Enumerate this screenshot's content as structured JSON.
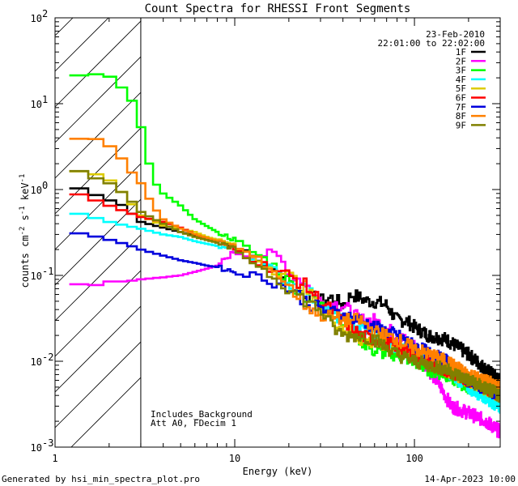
{
  "chart_data": {
    "type": "line",
    "title": "Count Spectra for RHESSI Front Segments",
    "xlabel": "Energy (keV)",
    "ylabel": "counts cm^-2 s^-1 keV^-1",
    "ylabel_parts": {
      "base": "counts cm",
      "e1": "-2",
      "mid1": " s",
      "e2": "-1",
      "mid2": " keV",
      "e3": "-1"
    },
    "x_scale": "log",
    "y_scale": "log",
    "xlim": [
      1,
      300
    ],
    "ylim": [
      0.001,
      100
    ],
    "x_ticks": [
      {
        "value": 1,
        "label": "1"
      },
      {
        "value": 10,
        "label": "10"
      },
      {
        "value": 100,
        "label": "100"
      }
    ],
    "y_ticks": [
      {
        "value": 0.001,
        "base": "10",
        "exp": "-3"
      },
      {
        "value": 0.01,
        "base": "10",
        "exp": "-2"
      },
      {
        "value": 0.1,
        "base": "10",
        "exp": "-1"
      },
      {
        "value": 1,
        "base": "10",
        "exp": "0"
      },
      {
        "value": 10,
        "base": "10",
        "exp": "1"
      },
      {
        "value": 100,
        "base": "10",
        "exp": "2"
      }
    ],
    "date": "23-Feb-2010",
    "time_range": "22:01:00 to 22:02:00",
    "hatched_region": {
      "x_from": 1,
      "x_to": 3
    },
    "annotations": [
      "Includes_Background",
      "Att A0, FDecim 1"
    ],
    "series": [
      {
        "name": "1F",
        "color": "#000000",
        "points": [
          [
            1.2,
            1.15
          ],
          [
            1.4,
            1.0
          ],
          [
            1.8,
            0.82
          ],
          [
            2.4,
            0.65
          ],
          [
            3,
            0.42
          ],
          [
            4,
            0.36
          ],
          [
            5,
            0.32
          ],
          [
            6,
            0.29
          ],
          [
            8,
            0.26
          ],
          [
            10,
            0.22
          ],
          [
            13,
            0.16
          ],
          [
            16,
            0.12
          ],
          [
            20,
            0.085
          ],
          [
            25,
            0.06
          ],
          [
            30,
            0.05
          ],
          [
            35,
            0.055
          ],
          [
            40,
            0.045
          ],
          [
            45,
            0.06
          ],
          [
            55,
            0.05
          ],
          [
            60,
            0.05
          ],
          [
            70,
            0.045
          ],
          [
            80,
            0.03
          ],
          [
            90,
            0.03
          ],
          [
            100,
            0.025
          ],
          [
            120,
            0.02
          ],
          [
            150,
            0.018
          ],
          [
            200,
            0.012
          ],
          [
            250,
            0.008
          ],
          [
            300,
            0.006
          ]
        ]
      },
      {
        "name": "2F",
        "color": "#ff00ff",
        "points": [
          [
            1.2,
            0.075
          ],
          [
            1.4,
            0.08
          ],
          [
            1.6,
            0.075
          ],
          [
            2,
            0.085
          ],
          [
            2.5,
            0.085
          ],
          [
            3,
            0.09
          ],
          [
            4,
            0.095
          ],
          [
            5,
            0.1
          ],
          [
            6,
            0.11
          ],
          [
            7,
            0.12
          ],
          [
            8,
            0.13
          ],
          [
            9,
            0.16
          ],
          [
            10,
            0.19
          ],
          [
            12,
            0.17
          ],
          [
            14,
            0.17
          ],
          [
            16,
            0.18
          ],
          [
            18,
            0.16
          ],
          [
            20,
            0.11
          ],
          [
            25,
            0.08
          ],
          [
            30,
            0.05
          ],
          [
            40,
            0.045
          ],
          [
            50,
            0.03
          ],
          [
            60,
            0.03
          ],
          [
            80,
            0.02
          ],
          [
            100,
            0.015
          ],
          [
            120,
            0.008
          ],
          [
            140,
            0.005
          ],
          [
            160,
            0.003
          ],
          [
            200,
            0.0025
          ],
          [
            250,
            0.002
          ],
          [
            300,
            0.0015
          ]
        ]
      },
      {
        "name": "3F",
        "color": "#00ff00",
        "points": [
          [
            1.2,
            19
          ],
          [
            1.4,
            22
          ],
          [
            1.7,
            22
          ],
          [
            2,
            21
          ],
          [
            2.3,
            16
          ],
          [
            2.6,
            13
          ],
          [
            3,
            5.5
          ],
          [
            3.5,
            1.3
          ],
          [
            4,
            0.9
          ],
          [
            5,
            0.65
          ],
          [
            6,
            0.45
          ],
          [
            8,
            0.32
          ],
          [
            10,
            0.26
          ],
          [
            13,
            0.18
          ],
          [
            16,
            0.14
          ],
          [
            20,
            0.085
          ],
          [
            25,
            0.055
          ],
          [
            30,
            0.045
          ],
          [
            40,
            0.03
          ],
          [
            50,
            0.018
          ],
          [
            60,
            0.013
          ],
          [
            80,
            0.012
          ],
          [
            100,
            0.01
          ],
          [
            120,
            0.008
          ],
          [
            150,
            0.007
          ],
          [
            200,
            0.005
          ],
          [
            300,
            0.004
          ]
        ]
      },
      {
        "name": "4F",
        "color": "#00ffff",
        "points": [
          [
            1.2,
            0.55
          ],
          [
            1.5,
            0.5
          ],
          [
            2,
            0.42
          ],
          [
            2.5,
            0.38
          ],
          [
            3,
            0.35
          ],
          [
            4,
            0.3
          ],
          [
            5,
            0.28
          ],
          [
            6,
            0.25
          ],
          [
            8,
            0.22
          ],
          [
            10,
            0.2
          ],
          [
            13,
            0.15
          ],
          [
            16,
            0.12
          ],
          [
            20,
            0.08
          ],
          [
            25,
            0.07
          ],
          [
            30,
            0.045
          ],
          [
            40,
            0.03
          ],
          [
            50,
            0.025
          ],
          [
            60,
            0.02
          ],
          [
            80,
            0.015
          ],
          [
            100,
            0.012
          ],
          [
            150,
            0.008
          ],
          [
            200,
            0.005
          ],
          [
            300,
            0.003
          ]
        ]
      },
      {
        "name": "5F",
        "color": "#ddcc00",
        "points": [
          [
            1.2,
            1.55
          ],
          [
            1.4,
            1.65
          ],
          [
            1.7,
            1.5
          ],
          [
            2,
            1.3
          ],
          [
            2.4,
            0.9
          ],
          [
            3,
            0.5
          ],
          [
            4,
            0.38
          ],
          [
            5,
            0.35
          ],
          [
            6,
            0.32
          ],
          [
            7,
            0.28
          ],
          [
            8,
            0.26
          ],
          [
            10,
            0.22
          ],
          [
            13,
            0.16
          ],
          [
            16,
            0.12
          ],
          [
            20,
            0.1
          ],
          [
            25,
            0.07
          ],
          [
            30,
            0.04
          ],
          [
            40,
            0.025
          ],
          [
            50,
            0.018
          ],
          [
            70,
            0.015
          ],
          [
            100,
            0.012
          ],
          [
            150,
            0.008
          ],
          [
            200,
            0.006
          ],
          [
            300,
            0.004
          ]
        ]
      },
      {
        "name": "6F",
        "color": "#ff0000",
        "points": [
          [
            1.2,
            0.95
          ],
          [
            1.5,
            0.82
          ],
          [
            2,
            0.65
          ],
          [
            2.5,
            0.55
          ],
          [
            3,
            0.48
          ],
          [
            4,
            0.42
          ],
          [
            5,
            0.36
          ],
          [
            6,
            0.3
          ],
          [
            8,
            0.24
          ],
          [
            10,
            0.2
          ],
          [
            13,
            0.15
          ],
          [
            16,
            0.12
          ],
          [
            20,
            0.1
          ],
          [
            25,
            0.075
          ],
          [
            30,
            0.05
          ],
          [
            40,
            0.03
          ],
          [
            50,
            0.02
          ],
          [
            60,
            0.018
          ],
          [
            80,
            0.015
          ],
          [
            100,
            0.012
          ],
          [
            150,
            0.008
          ],
          [
            200,
            0.006
          ],
          [
            250,
            0.005
          ],
          [
            300,
            0.004
          ]
        ]
      },
      {
        "name": "7F",
        "color": "#0000dd",
        "points": [
          [
            1.2,
            0.32
          ],
          [
            1.5,
            0.3
          ],
          [
            2,
            0.26
          ],
          [
            2.5,
            0.23
          ],
          [
            3,
            0.2
          ],
          [
            4,
            0.17
          ],
          [
            5,
            0.15
          ],
          [
            6,
            0.14
          ],
          [
            7,
            0.13
          ],
          [
            8,
            0.125
          ],
          [
            10,
            0.11
          ],
          [
            13,
            0.1
          ],
          [
            16,
            0.085
          ],
          [
            20,
            0.07
          ],
          [
            25,
            0.05
          ],
          [
            30,
            0.04
          ],
          [
            40,
            0.035
          ],
          [
            50,
            0.03
          ],
          [
            60,
            0.025
          ],
          [
            80,
            0.02
          ],
          [
            100,
            0.015
          ],
          [
            150,
            0.01
          ],
          [
            200,
            0.006
          ],
          [
            300,
            0.004
          ]
        ]
      },
      {
        "name": "8F",
        "color": "#ff8000",
        "points": [
          [
            1.2,
            3.8
          ],
          [
            1.5,
            4.0
          ],
          [
            1.8,
            3.8
          ],
          [
            2.2,
            2.8
          ],
          [
            2.6,
            1.7
          ],
          [
            3,
            1.2
          ],
          [
            3.5,
            0.65
          ],
          [
            4,
            0.45
          ],
          [
            5,
            0.35
          ],
          [
            6,
            0.3
          ],
          [
            8,
            0.25
          ],
          [
            10,
            0.22
          ],
          [
            13,
            0.16
          ],
          [
            16,
            0.12
          ],
          [
            20,
            0.075
          ],
          [
            25,
            0.045
          ],
          [
            30,
            0.035
          ],
          [
            40,
            0.03
          ],
          [
            50,
            0.03
          ],
          [
            60,
            0.022
          ],
          [
            80,
            0.018
          ],
          [
            100,
            0.014
          ],
          [
            150,
            0.01
          ],
          [
            200,
            0.007
          ],
          [
            300,
            0.005
          ]
        ]
      },
      {
        "name": "9F",
        "color": "#808000",
        "points": [
          [
            1.2,
            1.6
          ],
          [
            1.4,
            1.65
          ],
          [
            1.6,
            1.4
          ],
          [
            2,
            1.2
          ],
          [
            2.5,
            0.85
          ],
          [
            3,
            0.55
          ],
          [
            4,
            0.4
          ],
          [
            5,
            0.32
          ],
          [
            6,
            0.28
          ],
          [
            8,
            0.24
          ],
          [
            10,
            0.2
          ],
          [
            13,
            0.14
          ],
          [
            16,
            0.1
          ],
          [
            20,
            0.07
          ],
          [
            25,
            0.05
          ],
          [
            30,
            0.04
          ],
          [
            35,
            0.025
          ],
          [
            40,
            0.02
          ],
          [
            50,
            0.02
          ],
          [
            60,
            0.018
          ],
          [
            80,
            0.012
          ],
          [
            100,
            0.01
          ],
          [
            150,
            0.008
          ],
          [
            200,
            0.006
          ],
          [
            300,
            0.004
          ]
        ]
      }
    ]
  },
  "footer": {
    "generated_by": "Generated by hsi_min_spectra_plot.pro",
    "date": "14-Apr-2023 10:00"
  }
}
